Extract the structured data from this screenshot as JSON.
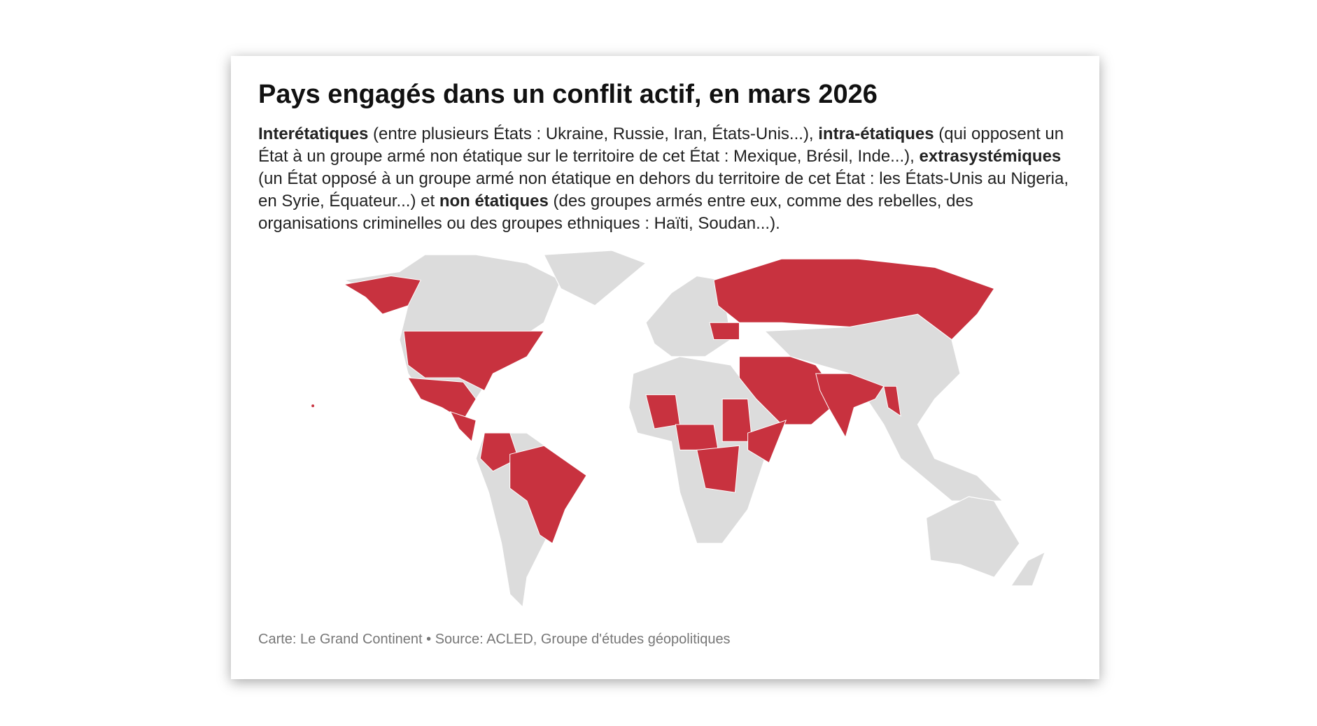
{
  "title": "Pays engagés dans un conflit actif, en mars 2026",
  "description": [
    "Interétatiques",
    " (entre plusieurs États : Ukraine, Russie, Iran, États-Unis...), ",
    "intra-étatiques",
    " (qui opposent un État à un groupe armé non étatique sur le territoire de cet État : Mexique, Brésil, Inde...), ",
    "extrasystémiques",
    " (un État opposé à un groupe armé non étatique en dehors du territoire de cet État : les États-Unis au Nigeria, en Syrie, Équateur...) et ",
    "non étatiques",
    " (des groupes armés entre eux, comme des rebelles, des organisations criminelles ou des groupes ethniques : Haïti, Soudan...)."
  ],
  "source": "Carte: Le Grand Continent • Source: ACLED, Groupe d'études géopolitiques"
}
